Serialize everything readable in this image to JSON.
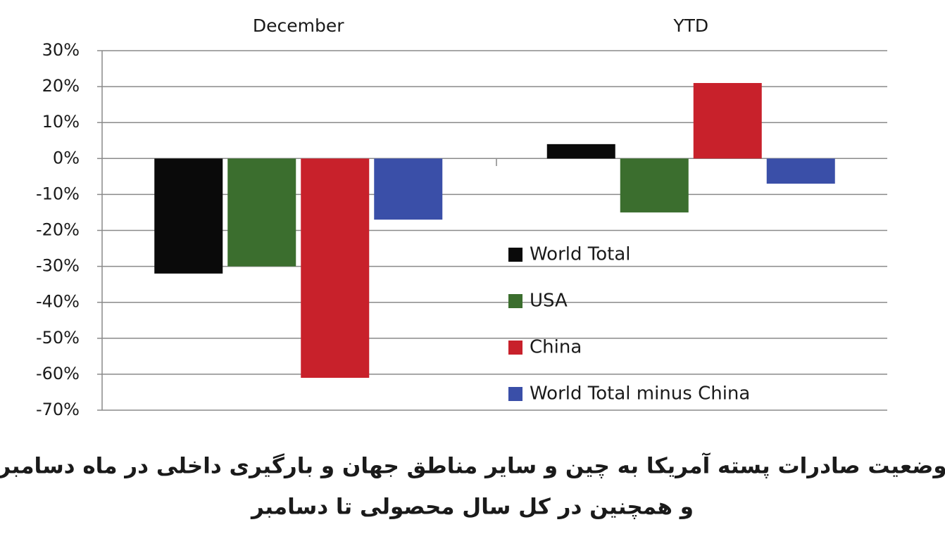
{
  "chart_data": {
    "type": "bar",
    "categories": [
      "December",
      "YTD"
    ],
    "series": [
      {
        "name": "World Total",
        "color": "#0a0a0a",
        "values": [
          -32,
          4
        ]
      },
      {
        "name": "USA",
        "color": "#3b6e2e",
        "values": [
          -30,
          -15
        ]
      },
      {
        "name": "China",
        "color": "#c8212b",
        "values": [
          -61,
          21
        ]
      },
      {
        "name": "World Total minus China",
        "color": "#3a4fa8",
        "values": [
          -17,
          -7
        ]
      }
    ],
    "ylim": [
      -70,
      30
    ],
    "yticks": [
      {
        "value": -70,
        "label": "-70%"
      },
      {
        "value": -60,
        "label": "-60%"
      },
      {
        "value": -50,
        "label": "-50%"
      },
      {
        "value": -40,
        "label": "-40%"
      },
      {
        "value": -30,
        "label": "-30%"
      },
      {
        "value": -20,
        "label": "-20%"
      },
      {
        "value": -10,
        "label": "-10%"
      },
      {
        "value": 0,
        "label": "0%"
      },
      {
        "value": 10,
        "label": "10%"
      },
      {
        "value": 20,
        "label": "20%"
      },
      {
        "value": 30,
        "label": "30%"
      }
    ],
    "grid": true,
    "legend": "inside-lower-right",
    "caption": [
      "وضعیت صادرات پسته آمریکا به چین و سایر مناطق جهان و بارگیری داخلی در ماه دسامبر",
      "و همچنین در کل سال محصولی تا دسامبر"
    ]
  }
}
